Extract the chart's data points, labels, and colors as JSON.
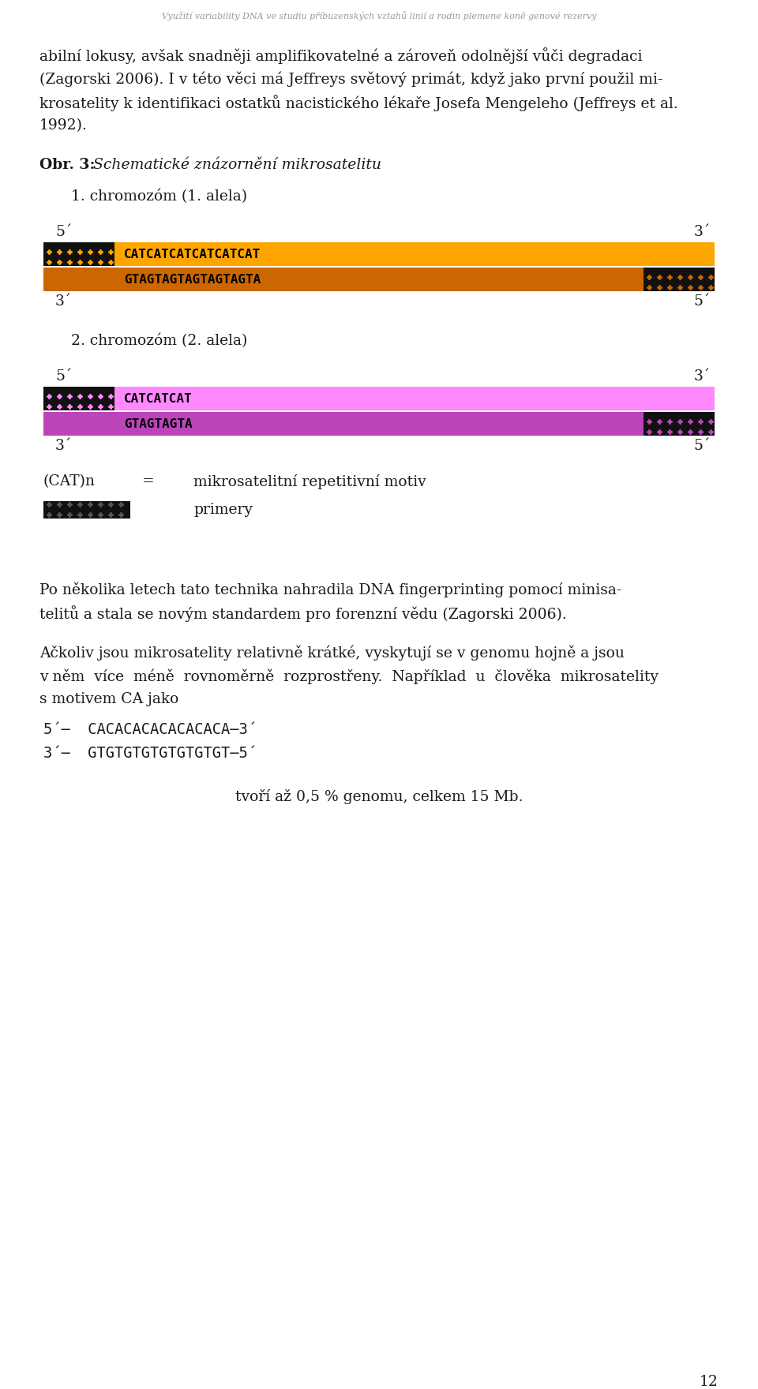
{
  "header_text": "Využití variability DNA ve studiu příbuzenských vztahů linií a rodin plemene koně genové rezervy",
  "obr_label": "Obr. 3:",
  "obr_title": " Schematické znázornění mikrosatelitu",
  "chrom1_label": "1. chromozóm (1. alela)",
  "chrom1_top_seq": "CATCATCATCATCATCAT",
  "chrom1_bot_seq": "GTAGTAGTAGTAGTAGTA",
  "chrom2_label": "2. chromozóm (2. alela)",
  "chrom2_top_seq": "CATCATCAT",
  "chrom2_bot_seq": "GTAGTAGTA",
  "legend_cat": "(CAT)n",
  "legend_eq": "=",
  "legend_motiv": "mikrosatelitní repetitivní motiv",
  "legend_primery": "primery",
  "seq_line1": "5´–  CACACACACACACACА–3´",
  "seq_line2": "3´–  GTGTGTGTGTGTGTGT–5´",
  "para4": "tvoří až 0,5 % genomu, celkem 15 Mb.",
  "page_num": "12",
  "orange_light": "#FFA500",
  "orange_dark": "#CC6600",
  "pink_light": "#FF88FF",
  "pink_dark": "#BB44BB",
  "black": "#000000",
  "white": "#FFFFFF",
  "bg": "#FFFFFF",
  "text_color": "#1a1a1a",
  "header_color": "#999999"
}
